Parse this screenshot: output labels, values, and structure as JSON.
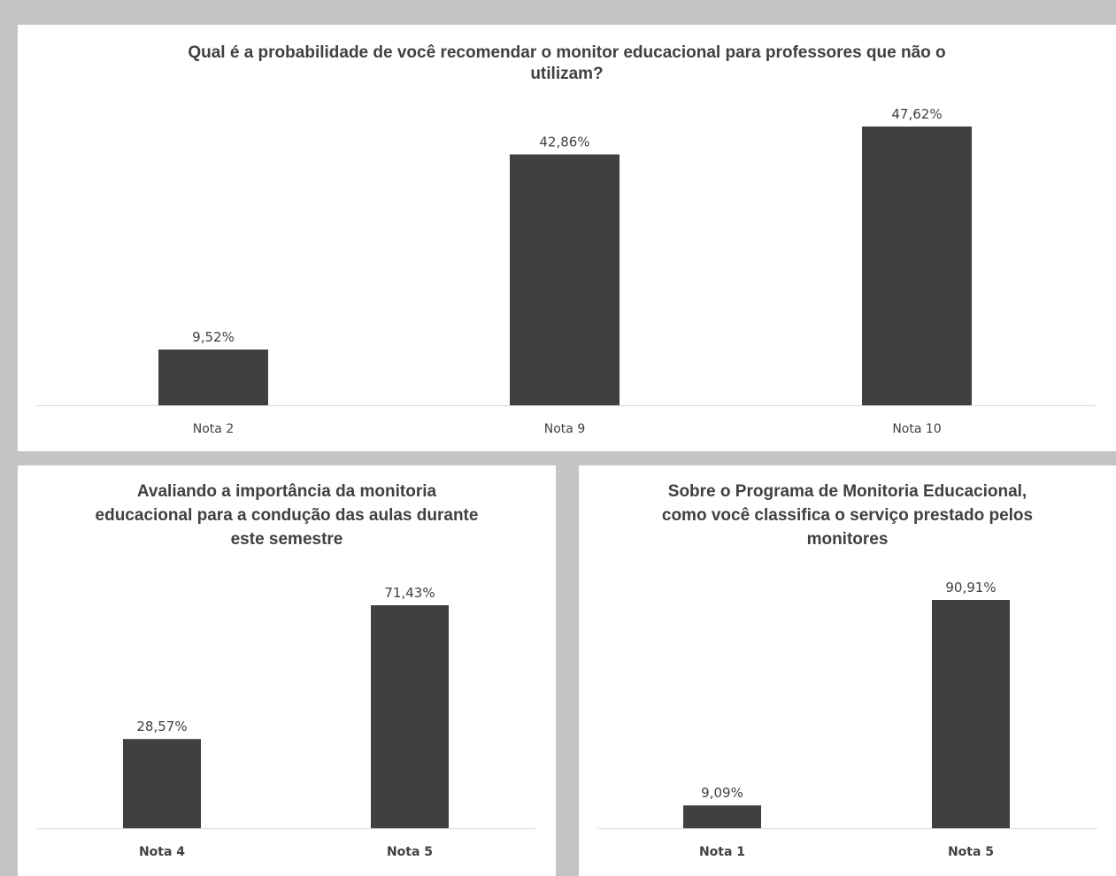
{
  "chart_data": [
    {
      "type": "bar",
      "title": "Qual é a probabilidade de você recomendar o monitor educacional para professores que não o\nutilizam?",
      "categories": [
        "Nota 2",
        "Nota 9",
        "Nota 10"
      ],
      "values": [
        9.52,
        42.86,
        47.62
      ],
      "value_labels": [
        "9,52%",
        "42,86%",
        "47,62%"
      ],
      "bar_color": "#404040",
      "grid": false,
      "legend": "none"
    },
    {
      "type": "bar",
      "title": "Avaliando a importância da monitoria\neducacional para a condução das aulas durante\neste semestre",
      "categories": [
        "Nota 4",
        "Nota 5"
      ],
      "values": [
        28.57,
        71.43
      ],
      "value_labels": [
        "28,57%",
        "71,43%"
      ],
      "bar_color": "#404040",
      "grid": false,
      "legend": "none"
    },
    {
      "type": "bar",
      "title": "Sobre o Programa de Monitoria Educacional,\ncomo você classifica o serviço prestado pelos\nmonitores",
      "categories": [
        "Nota 1",
        "Nota 5"
      ],
      "values": [
        9.09,
        90.91
      ],
      "value_labels": [
        "9,09%",
        "90,91%"
      ],
      "bar_color": "#404040",
      "grid": false,
      "legend": "none"
    }
  ]
}
